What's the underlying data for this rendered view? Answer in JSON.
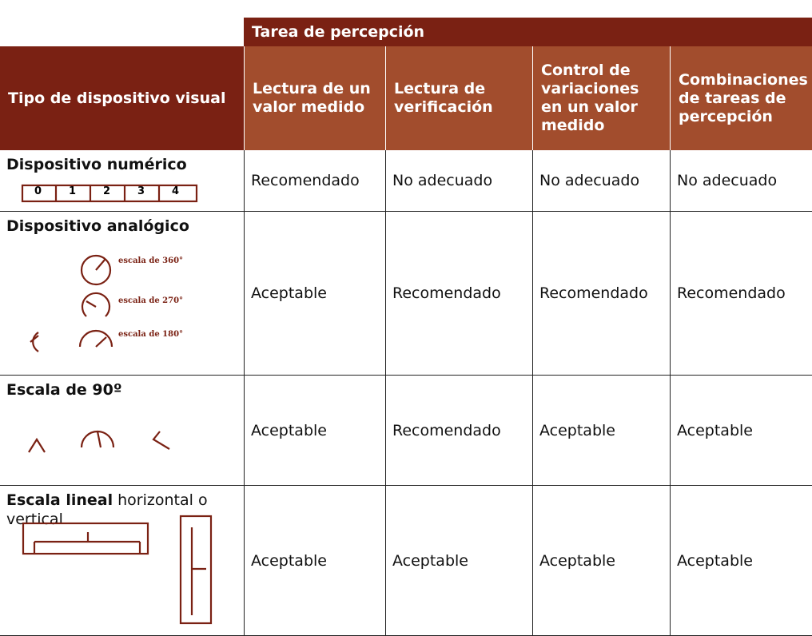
{
  "header": {
    "group": "Tarea de percepción",
    "row_header": "Tipo de dispositivo visual",
    "columns": [
      "Lectura de un valor medido",
      "Lectura de verificación",
      "Control de variaciones en un valor medido",
      "Combinaciones de tareas de percepción"
    ]
  },
  "rows": [
    {
      "device": "Dispositivo numérico",
      "digits": [
        "0",
        "1",
        "2",
        "3",
        "4"
      ],
      "cells": [
        "Recomendado",
        "No adecuado",
        "No adecuado",
        "No adecuado"
      ]
    },
    {
      "device": "Dispositivo analógico",
      "scales": [
        "escala de 360°",
        "escala de 270°",
        "escala de 180°"
      ],
      "cells": [
        "Aceptable",
        "Recomendado",
        "Recomendado",
        "Recomendado"
      ]
    },
    {
      "device": "Escala de 90º",
      "cells": [
        "Aceptable",
        "Recomendado",
        "Aceptable",
        "Aceptable"
      ]
    },
    {
      "device": "Escala lineal",
      "device_rest": "horizontal o vertical",
      "cells": [
        "Aceptable",
        "Aceptable",
        "Aceptable",
        "Aceptable"
      ]
    }
  ]
}
